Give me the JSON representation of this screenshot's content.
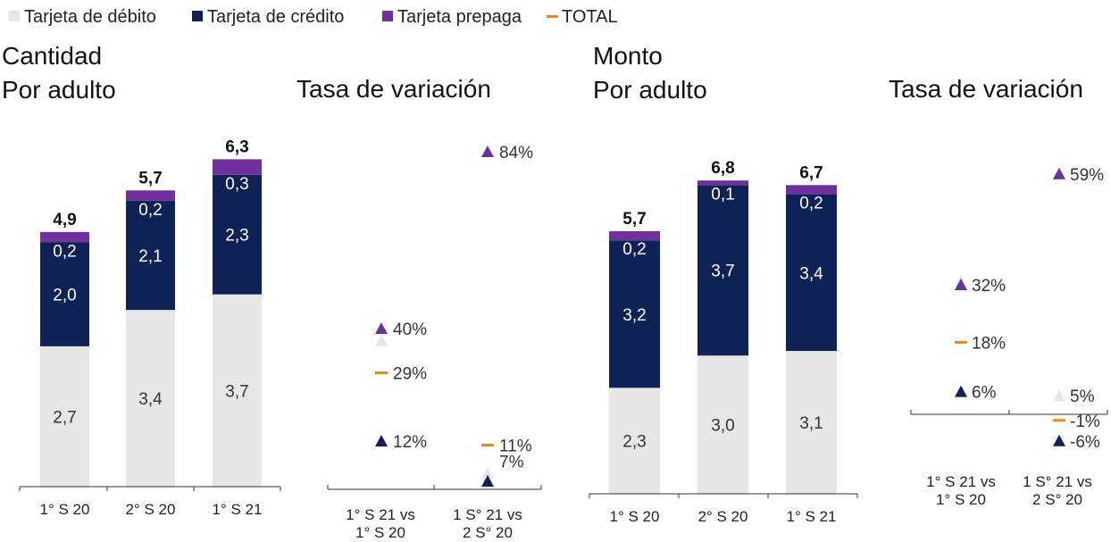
{
  "colors": {
    "debito": "#e6e6e6",
    "credito": "#0f2256",
    "prepaga": "#7030a0",
    "total": "#e88a1a",
    "axis": "#333333"
  },
  "legend": [
    {
      "key": "debito",
      "label": "Tarjeta de débito",
      "marker": "square"
    },
    {
      "key": "credito",
      "label": "Tarjeta de crédito",
      "marker": "square"
    },
    {
      "key": "prepaga",
      "label": "Tarjeta prepaga",
      "marker": "square"
    },
    {
      "key": "total",
      "label": "TOTAL",
      "marker": "dash"
    }
  ],
  "chart_data": [
    {
      "id": "cantidad-bars",
      "type": "bar",
      "stacked": true,
      "title": [
        "Cantidad",
        "Por adulto"
      ],
      "categories": [
        "1° S 20",
        "2° S 20",
        "1° S 21"
      ],
      "series": [
        {
          "key": "debito",
          "name": "Tarjeta de débito",
          "values": [
            2.7,
            3.4,
            3.7
          ],
          "labels": [
            "2,7",
            "3,4",
            "3,7"
          ]
        },
        {
          "key": "credito",
          "name": "Tarjeta de crédito",
          "values": [
            2.0,
            2.1,
            2.3
          ],
          "labels": [
            "2,0",
            "2,1",
            "2,3"
          ]
        },
        {
          "key": "prepaga",
          "name": "Tarjeta prepaga",
          "values": [
            0.2,
            0.2,
            0.3
          ],
          "labels": [
            "0,2",
            "0,2",
            "0,3"
          ]
        }
      ],
      "totals": [
        4.9,
        5.7,
        6.3
      ],
      "total_labels": [
        "4,9",
        "5,7",
        "6,3"
      ],
      "ylim": [
        0,
        6.6
      ]
    },
    {
      "id": "cantidad-variacion",
      "type": "scatter",
      "title": [
        "Tasa de variación"
      ],
      "categories": [
        "1° S 21 vs\n1° S 20",
        "1 S° 21 vs\n2 S° 20"
      ],
      "series": [
        {
          "key": "prepaga",
          "name": "Tarjeta prepaga",
          "values": [
            40,
            84
          ]
        },
        {
          "key": "debito",
          "name": "Tarjeta de débito",
          "values": [
            37,
            4
          ]
        },
        {
          "key": "total",
          "name": "TOTAL",
          "values": [
            29,
            11
          ]
        },
        {
          "key": "credito",
          "name": "Tarjeta de crédito",
          "values": [
            12,
            2
          ]
        }
      ],
      "labels": [
        {
          "text": "40%",
          "cat": 0,
          "value": 40
        },
        {
          "text": "29%",
          "cat": 0,
          "value": 29
        },
        {
          "text": "12%",
          "cat": 0,
          "value": 12
        },
        {
          "text": "84%",
          "cat": 1,
          "value": 84
        },
        {
          "text": "11%",
          "cat": 1,
          "value": 11
        },
        {
          "text": "7%",
          "cat": 1,
          "value": 7
        }
      ],
      "ylim": [
        -4,
        87
      ]
    },
    {
      "id": "monto-bars",
      "type": "bar",
      "stacked": true,
      "title": [
        "Monto",
        "Por adulto"
      ],
      "categories": [
        "1° S 20",
        "2° S 20",
        "1° S 21"
      ],
      "series": [
        {
          "key": "debito",
          "name": "Tarjeta de débito",
          "values": [
            2.3,
            3.0,
            3.1
          ],
          "labels": [
            "2,3",
            "3,0",
            "3,1"
          ]
        },
        {
          "key": "credito",
          "name": "Tarjeta de crédito",
          "values": [
            3.2,
            3.7,
            3.4
          ],
          "labels": [
            "3,2",
            "3,7",
            "3,4"
          ]
        },
        {
          "key": "prepaga",
          "name": "Tarjeta prepaga",
          "values": [
            0.2,
            0.1,
            0.2
          ],
          "labels": [
            "0,2",
            "0,1",
            "0,2"
          ]
        }
      ],
      "totals": [
        5.7,
        6.8,
        6.7
      ],
      "total_labels": [
        "5,7",
        "6,8",
        "6,7"
      ],
      "ylim": [
        0,
        7.05
      ]
    },
    {
      "id": "monto-variacion",
      "type": "scatter",
      "title": [
        "Tasa de variación"
      ],
      "categories": [
        "1° S 21 vs\n1° S 20",
        "1 S° 21 vs\n2 S° 20"
      ],
      "series": [
        {
          "key": "prepaga",
          "name": "Tarjeta prepaga",
          "values": [
            32,
            59
          ]
        },
        {
          "key": "debito",
          "name": "Tarjeta de débito",
          "values": [
            33,
            5
          ]
        },
        {
          "key": "total",
          "name": "TOTAL",
          "values": [
            18,
            -1
          ]
        },
        {
          "key": "credito",
          "name": "Tarjeta de crédito",
          "values": [
            6,
            -6
          ]
        }
      ],
      "labels": [
        {
          "text": "32%",
          "cat": 0,
          "value": 32
        },
        {
          "text": "18%",
          "cat": 0,
          "value": 18
        },
        {
          "text": "6%",
          "cat": 0,
          "value": 6
        },
        {
          "text": "59%",
          "cat": 1,
          "value": 59
        },
        {
          "text": "5%",
          "cat": 1,
          "value": 5
        },
        {
          "text": "-1%",
          "cat": 1,
          "value": -1
        },
        {
          "text": "-6%",
          "cat": 1,
          "value": -6
        }
      ],
      "ylim": [
        -12,
        64
      ]
    }
  ]
}
